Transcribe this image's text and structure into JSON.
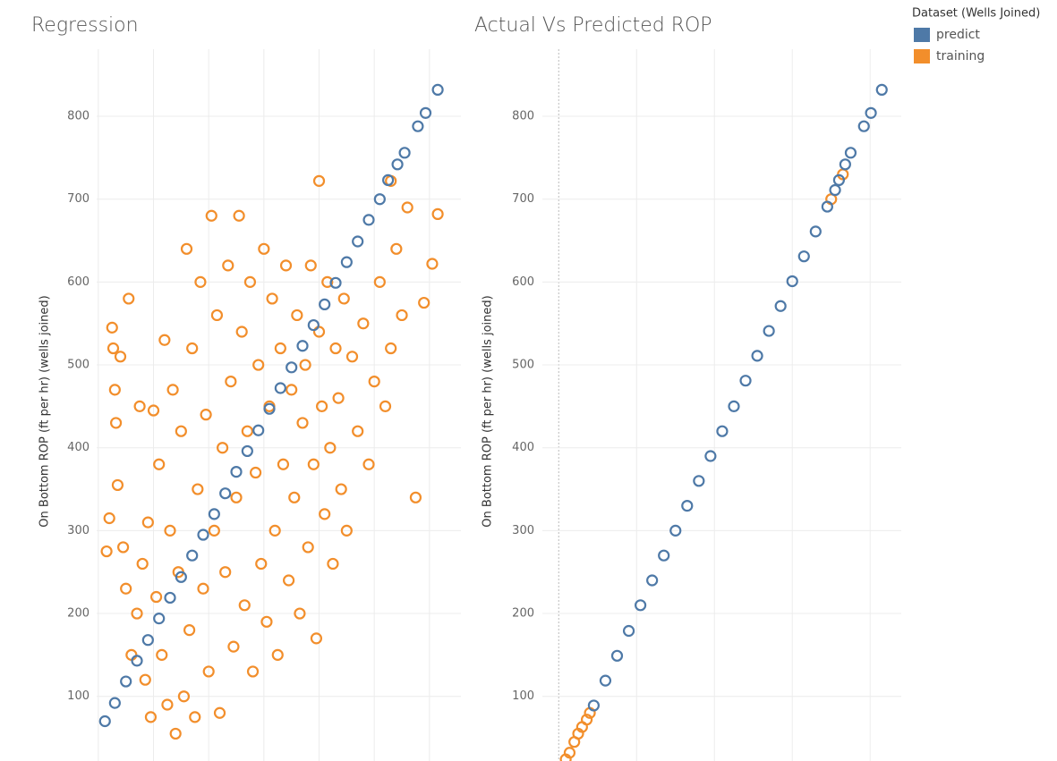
{
  "legend_title": "Dataset (Wells Joined)",
  "chart_data": [
    {
      "type": "scatter",
      "title": "Regression",
      "y_label": "On Bottom ROP (ft per hr) (wells joined)",
      "xlim": [
        -0.03,
        6.57
      ],
      "xticks": [
        0,
        1,
        2,
        3,
        4,
        5,
        6
      ],
      "ylim": [
        22,
        881
      ],
      "yticks": [
        100,
        200,
        300,
        400,
        500,
        600,
        700,
        800
      ],
      "grid": true,
      "series": [
        {
          "name": "predict",
          "color": "#4e79a7",
          "x": [
            0.12,
            0.3,
            0.5,
            0.7,
            0.9,
            1.1,
            1.3,
            1.5,
            1.7,
            1.9,
            2.1,
            2.3,
            2.5,
            2.7,
            2.9,
            3.1,
            3.3,
            3.5,
            3.7,
            3.9,
            4.1,
            4.3,
            4.5,
            4.7,
            4.9,
            5.1,
            5.25,
            5.42,
            5.55,
            5.79,
            5.93,
            6.15
          ],
          "values": [
            70,
            92,
            118,
            143,
            168,
            194,
            219,
            244,
            270,
            295,
            320,
            345,
            371,
            396,
            421,
            447,
            472,
            497,
            523,
            548,
            573,
            599,
            624,
            649,
            675,
            700,
            723,
            742,
            756,
            788,
            804,
            832
          ]
        },
        {
          "name": "training",
          "color": "#f28e2b",
          "x": [
            0.15,
            0.2,
            0.25,
            0.27,
            0.3,
            0.32,
            0.35,
            0.4,
            0.45,
            0.5,
            0.55,
            0.6,
            0.7,
            0.75,
            0.8,
            0.85,
            0.9,
            0.95,
            1.0,
            1.05,
            1.1,
            1.15,
            1.2,
            1.25,
            1.3,
            1.35,
            1.4,
            1.45,
            1.5,
            1.55,
            1.6,
            1.65,
            1.7,
            1.75,
            1.8,
            1.85,
            1.9,
            1.95,
            2.0,
            2.05,
            2.1,
            2.15,
            2.2,
            2.25,
            2.3,
            2.35,
            2.4,
            2.45,
            2.5,
            2.55,
            2.6,
            2.65,
            2.7,
            2.75,
            2.8,
            2.85,
            2.9,
            2.95,
            3.0,
            3.05,
            3.1,
            3.15,
            3.2,
            3.25,
            3.3,
            3.35,
            3.4,
            3.45,
            3.5,
            3.55,
            3.6,
            3.65,
            3.7,
            3.75,
            3.8,
            3.85,
            3.9,
            3.95,
            4.0,
            4.05,
            4.1,
            4.15,
            4.2,
            4.25,
            4.3,
            4.35,
            4.4,
            4.45,
            4.5,
            4.6,
            4.7,
            4.8,
            4.9,
            5.0,
            5.1,
            5.2,
            5.3,
            5.4,
            5.5,
            5.6,
            5.75,
            5.9,
            6.05,
            6.15,
            5.3,
            4.0
          ],
          "values": [
            275,
            315,
            545,
            520,
            470,
            430,
            355,
            510,
            280,
            230,
            580,
            150,
            200,
            450,
            260,
            120,
            310,
            75,
            445,
            220,
            380,
            150,
            530,
            90,
            300,
            470,
            55,
            250,
            420,
            100,
            640,
            180,
            520,
            75,
            350,
            600,
            230,
            440,
            130,
            680,
            300,
            560,
            80,
            400,
            250,
            620,
            480,
            160,
            340,
            680,
            540,
            210,
            420,
            600,
            130,
            370,
            500,
            260,
            640,
            190,
            450,
            580,
            300,
            150,
            520,
            380,
            620,
            240,
            470,
            340,
            560,
            200,
            430,
            500,
            280,
            620,
            380,
            170,
            540,
            450,
            320,
            600,
            400,
            260,
            520,
            460,
            350,
            580,
            300,
            510,
            420,
            550,
            380,
            480,
            600,
            450,
            520,
            640,
            560,
            690,
            340,
            575,
            622,
            682,
            722,
            722
          ]
        }
      ]
    },
    {
      "type": "scatter",
      "title": "Actual Vs Predicted ROP",
      "y_label": "On Bottom ROP (ft per hr) (wells joined)",
      "xlim": [
        -0.21,
        4.4
      ],
      "xticks": [
        0,
        1,
        2,
        3,
        4
      ],
      "ylim": [
        22,
        881
      ],
      "yticks": [
        100,
        200,
        300,
        400,
        500,
        600,
        700,
        800
      ],
      "grid": true,
      "series": [
        {
          "name": "predict",
          "color": "#4e79a7",
          "x": [
            0.45,
            0.6,
            0.75,
            0.9,
            1.05,
            1.2,
            1.35,
            1.5,
            1.65,
            1.8,
            1.95,
            2.1,
            2.25,
            2.4,
            2.55,
            2.7,
            2.85,
            3.0,
            3.15,
            3.3,
            3.45,
            3.55,
            3.6,
            3.68,
            3.75,
            3.92,
            4.01,
            4.15
          ],
          "values": [
            89,
            119,
            149,
            179,
            210,
            240,
            270,
            300,
            330,
            360,
            390,
            420,
            450,
            481,
            511,
            541,
            571,
            601,
            631,
            661,
            691,
            711,
            723,
            742,
            756,
            788,
            804,
            832
          ]
        },
        {
          "name": "training",
          "color": "#f28e2b",
          "x": [
            0.09,
            0.14,
            0.2,
            0.25,
            0.3,
            0.36,
            0.4,
            3.5,
            3.65
          ],
          "values": [
            24,
            32,
            45,
            55,
            63,
            72,
            80,
            700,
            730
          ]
        }
      ]
    }
  ]
}
